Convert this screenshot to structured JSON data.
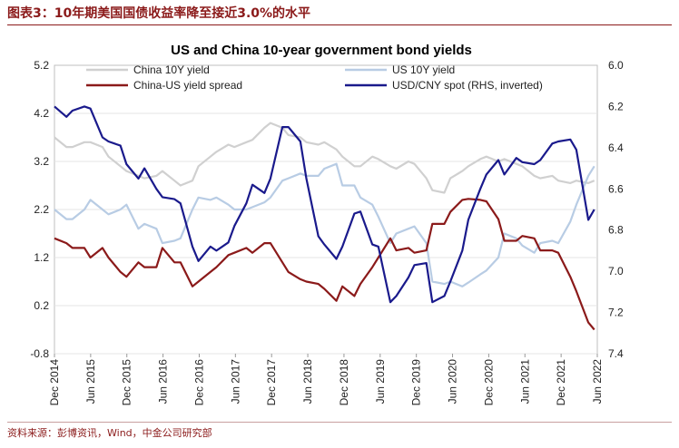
{
  "heading": "图表3：10年期美国国债收益率降至接近3.0%的水平",
  "source": "资料来源：彭博资讯，Wind，中金公司研究部",
  "chart_data": {
    "type": "line",
    "title": "US and China 10-year government bond yields",
    "left_axis": {
      "ticks": [
        "5.2",
        "4.2",
        "3.2",
        "2.2",
        "1.2",
        "0.2",
        "-0.8"
      ],
      "ylim": [
        -0.8,
        5.2
      ]
    },
    "right_axis": {
      "ticks": [
        "6.0",
        "6.2",
        "6.4",
        "6.6",
        "6.8",
        "7.0",
        "7.2",
        "7.4"
      ],
      "ylim": [
        6.0,
        7.4
      ],
      "inverted": true
    },
    "x_tick_labels": [
      "Dec 2014",
      "Jun 2015",
      "Dec 2015",
      "Jun 2016",
      "Dec 2016",
      "Jun 2017",
      "Dec 2017",
      "Jun 2018",
      "Dec 2018",
      "Jun 2019",
      "Dec 2019",
      "Jun 2020",
      "Dec 2020",
      "Jun 2021",
      "Dec 2021",
      "Jun 2022"
    ],
    "legend": [
      {
        "name": "China 10Y yield",
        "color": "#d0d0d0"
      },
      {
        "name": "US 10Y yield",
        "color": "#b8cce4"
      },
      {
        "name": "China-US yield spread",
        "color": "#8b1a1a"
      },
      {
        "name": "USD/CNY spot (RHS, inverted)",
        "color": "#1a1a8c"
      }
    ],
    "x": [
      "2014-12",
      "2015-02",
      "2015-03",
      "2015-05",
      "2015-06",
      "2015-08",
      "2015-09",
      "2015-11",
      "2015-12",
      "2016-02",
      "2016-03",
      "2016-05",
      "2016-06",
      "2016-08",
      "2016-09",
      "2016-11",
      "2016-12",
      "2017-02",
      "2017-03",
      "2017-05",
      "2017-06",
      "2017-08",
      "2017-09",
      "2017-11",
      "2017-12",
      "2018-02",
      "2018-03",
      "2018-05",
      "2018-06",
      "2018-08",
      "2018-09",
      "2018-11",
      "2018-12",
      "2019-02",
      "2019-03",
      "2019-05",
      "2019-06",
      "2019-08",
      "2019-09",
      "2019-11",
      "2019-12",
      "2020-02",
      "2020-03",
      "2020-05",
      "2020-06",
      "2020-08",
      "2020-09",
      "2020-11",
      "2020-12",
      "2021-02",
      "2021-03",
      "2021-05",
      "2021-06",
      "2021-08",
      "2021-09",
      "2021-11",
      "2021-12",
      "2022-02",
      "2022-03",
      "2022-05",
      "2022-06"
    ],
    "series": [
      {
        "name": "China 10Y yield",
        "axis": "left",
        "values": [
          3.7,
          3.5,
          3.5,
          3.6,
          3.6,
          3.5,
          3.3,
          3.1,
          3.0,
          2.9,
          2.85,
          2.9,
          3.0,
          2.8,
          2.7,
          2.8,
          3.1,
          3.3,
          3.4,
          3.55,
          3.5,
          3.6,
          3.65,
          3.9,
          4.0,
          3.9,
          3.75,
          3.7,
          3.6,
          3.55,
          3.6,
          3.45,
          3.3,
          3.1,
          3.1,
          3.3,
          3.25,
          3.1,
          3.05,
          3.2,
          3.15,
          2.85,
          2.6,
          2.55,
          2.85,
          3.0,
          3.1,
          3.25,
          3.3,
          3.2,
          3.25,
          3.15,
          3.1,
          2.9,
          2.85,
          2.9,
          2.8,
          2.75,
          2.8,
          2.75,
          2.8
        ]
      },
      {
        "name": "US 10Y yield",
        "axis": "left",
        "values": [
          2.2,
          2.0,
          2.0,
          2.2,
          2.4,
          2.2,
          2.1,
          2.2,
          2.3,
          1.8,
          1.9,
          1.8,
          1.5,
          1.55,
          1.6,
          2.2,
          2.45,
          2.4,
          2.45,
          2.3,
          2.2,
          2.2,
          2.25,
          2.35,
          2.45,
          2.8,
          2.85,
          2.95,
          2.9,
          2.9,
          3.05,
          3.15,
          2.7,
          2.7,
          2.45,
          2.3,
          2.05,
          1.5,
          1.7,
          1.8,
          1.85,
          1.5,
          0.7,
          0.65,
          0.7,
          0.6,
          0.68,
          0.85,
          0.93,
          1.2,
          1.7,
          1.6,
          1.45,
          1.3,
          1.5,
          1.55,
          1.5,
          1.95,
          2.3,
          2.9,
          3.1
        ]
      },
      {
        "name": "China-US yield spread",
        "axis": "left",
        "values": [
          1.6,
          1.5,
          1.4,
          1.4,
          1.2,
          1.4,
          1.2,
          0.9,
          0.8,
          1.1,
          1.0,
          1.0,
          1.4,
          1.1,
          1.1,
          0.6,
          0.7,
          0.9,
          1.0,
          1.25,
          1.3,
          1.4,
          1.3,
          1.5,
          1.5,
          1.1,
          0.9,
          0.75,
          0.7,
          0.65,
          0.55,
          0.3,
          0.6,
          0.4,
          0.65,
          1.0,
          1.2,
          1.6,
          1.35,
          1.4,
          1.3,
          1.35,
          1.9,
          1.9,
          2.15,
          2.4,
          2.42,
          2.4,
          2.37,
          2.0,
          1.55,
          1.55,
          1.65,
          1.6,
          1.35,
          1.35,
          1.3,
          0.8,
          0.5,
          -0.15,
          -0.3
        ]
      },
      {
        "name": "USD/CNY spot (RHS, inverted)",
        "axis": "right",
        "values": [
          6.2,
          6.25,
          6.22,
          6.2,
          6.21,
          6.35,
          6.37,
          6.39,
          6.48,
          6.55,
          6.5,
          6.6,
          6.64,
          6.65,
          6.67,
          6.88,
          6.95,
          6.88,
          6.9,
          6.86,
          6.78,
          6.67,
          6.58,
          6.62,
          6.55,
          6.3,
          6.3,
          6.37,
          6.55,
          6.83,
          6.87,
          6.94,
          6.88,
          6.72,
          6.71,
          6.87,
          6.88,
          7.15,
          7.12,
          7.03,
          6.97,
          6.96,
          7.15,
          7.12,
          7.05,
          6.9,
          6.75,
          6.6,
          6.53,
          6.46,
          6.53,
          6.45,
          6.47,
          6.48,
          6.46,
          6.38,
          6.37,
          6.36,
          6.41,
          6.75,
          6.7
        ]
      }
    ]
  }
}
